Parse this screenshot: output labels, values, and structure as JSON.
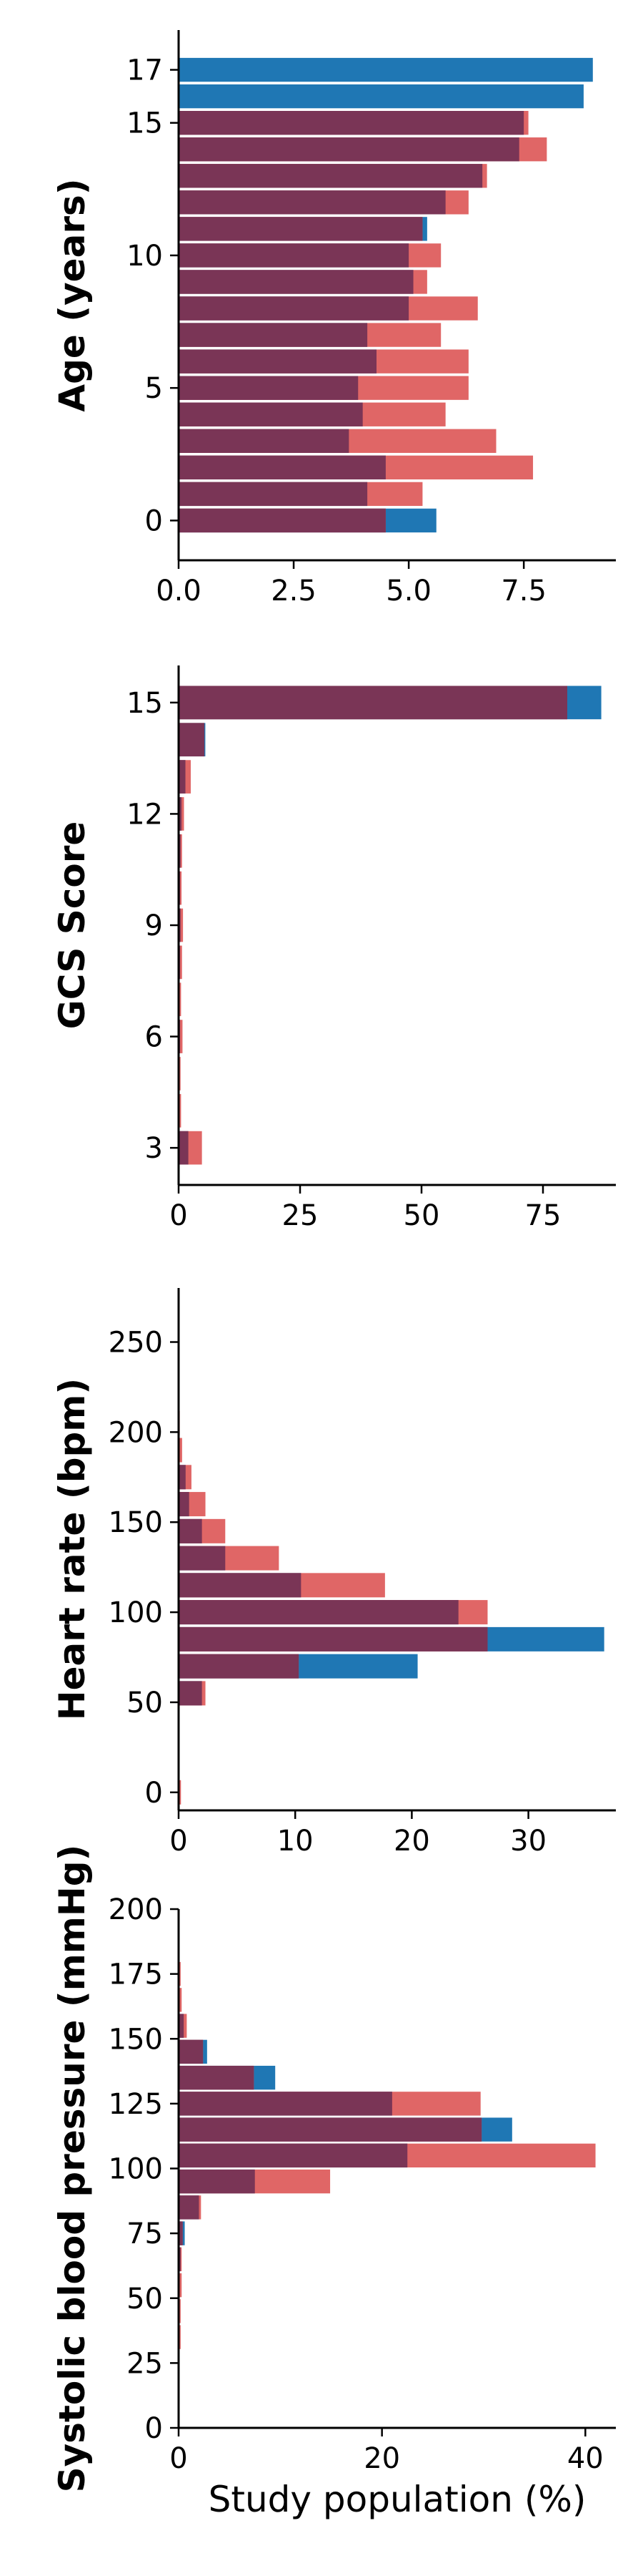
{
  "colors": {
    "series_a": "#1f77b4",
    "series_b": "#e06666",
    "overlap": "#7a3556"
  },
  "figure": {
    "xlabel": "Study population (%)"
  },
  "chart_data": [
    {
      "type": "bar",
      "orientation": "horizontal",
      "ylabel": "Age (years)",
      "xlim": [
        0,
        9.5
      ],
      "ylim": [
        -1.5,
        18.5
      ],
      "xticks": [
        0,
        2.5,
        5,
        7.5
      ],
      "xtick_labels": [
        "0.0",
        "2.5",
        "5.0",
        "7.5"
      ],
      "yticks": [
        0,
        5,
        10,
        15,
        17
      ],
      "ytick_labels": [
        "0",
        "5",
        "10",
        "15",
        "17"
      ],
      "bar_height": 0.9,
      "categories": [
        0,
        1,
        2,
        3,
        4,
        5,
        6,
        7,
        8,
        9,
        10,
        11,
        12,
        13,
        14,
        15,
        16,
        17
      ],
      "series": [
        {
          "color": "series_a",
          "values": [
            5.6,
            4.1,
            4.5,
            3.7,
            4.0,
            3.9,
            4.3,
            4.1,
            5.0,
            5.1,
            5.0,
            5.4,
            5.8,
            6.6,
            7.4,
            7.5,
            8.8,
            9.0
          ]
        },
        {
          "color": "series_b",
          "values": [
            4.5,
            5.3,
            7.7,
            6.9,
            5.8,
            6.3,
            6.3,
            5.7,
            6.5,
            5.4,
            5.7,
            5.3,
            6.3,
            6.7,
            8.0,
            7.6,
            0,
            0
          ]
        }
      ]
    },
    {
      "type": "bar",
      "orientation": "horizontal",
      "ylabel": "GCS Score",
      "xlim": [
        0,
        90
      ],
      "ylim": [
        2,
        16
      ],
      "xticks": [
        0,
        25,
        50,
        75
      ],
      "xtick_labels": [
        "0",
        "25",
        "50",
        "75"
      ],
      "yticks": [
        3,
        6,
        9,
        12,
        15
      ],
      "ytick_labels": [
        "3",
        "6",
        "9",
        "12",
        "15"
      ],
      "bar_height": 0.9,
      "categories": [
        3,
        4,
        5,
        6,
        7,
        8,
        9,
        10,
        11,
        12,
        13,
        14,
        15
      ],
      "series": [
        {
          "color": "series_a",
          "values": [
            2.0,
            0.1,
            0.2,
            0.3,
            0.2,
            0.3,
            0.4,
            0.3,
            0.4,
            0.6,
            1.4,
            5.5,
            87.0
          ]
        },
        {
          "color": "series_b",
          "values": [
            4.8,
            0.5,
            0.4,
            0.8,
            0.5,
            0.7,
            0.9,
            0.6,
            0.7,
            1.1,
            2.5,
            5.3,
            80.0
          ]
        }
      ]
    },
    {
      "type": "bar",
      "orientation": "horizontal",
      "ylabel": "Heart rate (bpm)",
      "xlim": [
        0,
        37.5
      ],
      "ylim": [
        -10,
        280
      ],
      "xticks": [
        0,
        10,
        20,
        30
      ],
      "xtick_labels": [
        "0",
        "10",
        "20",
        "30"
      ],
      "yticks": [
        0,
        50,
        100,
        150,
        200,
        250
      ],
      "ytick_labels": [
        "0",
        "50",
        "100",
        "150",
        "200",
        "250"
      ],
      "bar_height": 13.5,
      "categories": [
        0,
        55,
        70,
        85,
        100,
        115,
        130,
        145,
        160,
        175,
        190,
        205
      ],
      "series": [
        {
          "color": "series_a",
          "values": [
            0,
            2.0,
            20.5,
            36.5,
            24.0,
            10.5,
            4.0,
            2.0,
            0.9,
            0.6,
            0,
            0
          ]
        },
        {
          "color": "series_b",
          "values": [
            0.2,
            2.3,
            10.3,
            26.5,
            26.5,
            17.7,
            8.6,
            4.0,
            2.3,
            1.1,
            0.3,
            0.1
          ]
        }
      ]
    },
    {
      "type": "bar",
      "orientation": "horizontal",
      "ylabel": "Systolic blood pressure (mmHg)",
      "xlim": [
        0,
        43
      ],
      "ylim": [
        0,
        200
      ],
      "xticks": [
        0,
        20,
        40
      ],
      "xtick_labels": [
        "0",
        "20",
        "40"
      ],
      "yticks": [
        0,
        25,
        50,
        75,
        100,
        125,
        150,
        175,
        200
      ],
      "ytick_labels": [
        "0",
        "25",
        "50",
        "75",
        "100",
        "125",
        "150",
        "175",
        "200"
      ],
      "bar_height": 9.2,
      "categories": [
        5,
        15,
        25,
        35,
        45,
        55,
        65,
        75,
        85,
        95,
        105,
        115,
        125,
        135,
        145,
        155,
        165,
        175,
        185,
        195
      ],
      "series": [
        {
          "color": "series_a",
          "values": [
            0,
            0,
            0,
            0,
            0,
            0,
            0.2,
            0.6,
            2.0,
            7.5,
            22.5,
            32.8,
            21.0,
            9.5,
            2.8,
            0.5,
            0,
            0,
            0,
            0
          ]
        },
        {
          "color": "series_b",
          "values": [
            0.1,
            0.1,
            0.1,
            0.2,
            0.2,
            0.3,
            0.3,
            0.4,
            2.2,
            14.9,
            41.0,
            29.8,
            29.7,
            7.4,
            2.4,
            0.8,
            0.3,
            0.2,
            0.1,
            0
          ]
        }
      ]
    }
  ]
}
